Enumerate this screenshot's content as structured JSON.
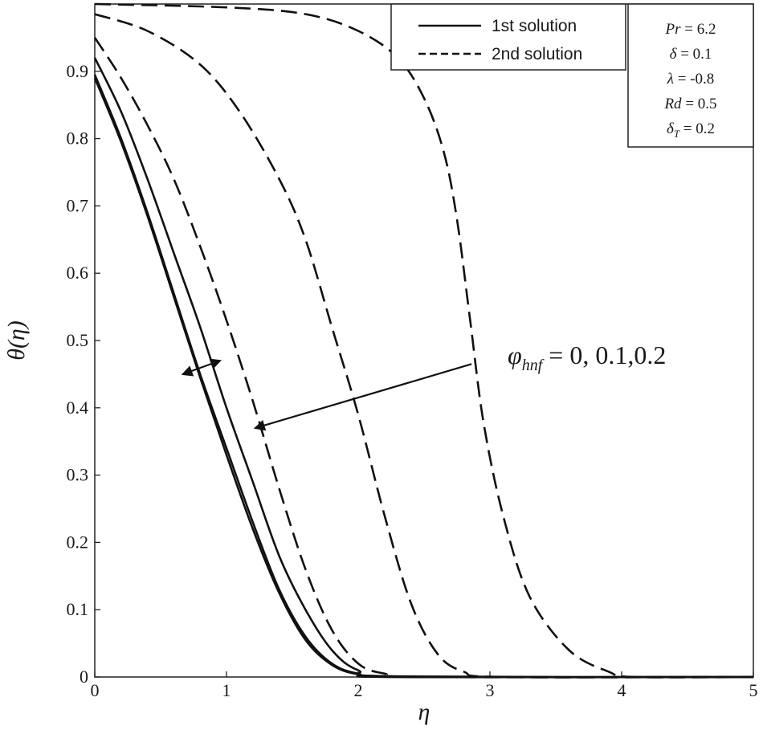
{
  "chart_data": {
    "type": "line",
    "xlabel": "η",
    "ylabel": "θ(η)",
    "xlim": [
      0,
      5
    ],
    "ylim": [
      0,
      1
    ],
    "x_ticks": [
      "0",
      "1",
      "2",
      "3",
      "4",
      "5"
    ],
    "y_ticks": [
      "0",
      "0.1",
      "0.2",
      "0.3",
      "0.4",
      "0.5",
      "0.6",
      "0.7",
      "0.8",
      "0.9"
    ],
    "grid": false,
    "legend": {
      "position": "top-center",
      "entries": [
        {
          "label": "1st solution",
          "style": "solid"
        },
        {
          "label": "2nd solution",
          "style": "dashed"
        }
      ]
    },
    "parameters": [
      {
        "symbol": "Pr",
        "sub": "",
        "value": "= 6.2"
      },
      {
        "symbol": "δ",
        "sub": "",
        "value": "= 0.1"
      },
      {
        "symbol": "λ",
        "sub": "",
        "value": "= -0.8"
      },
      {
        "symbol": "Rd",
        "sub": "",
        "value": "= 0.5"
      },
      {
        "symbol": "δ",
        "sub": "T",
        "value": "= 0.2"
      }
    ],
    "annotation": {
      "symbol": "φ",
      "sub": "hnf",
      "value": " = 0, 0.1,0.2"
    },
    "series": [
      {
        "style": "solid",
        "points": [
          [
            0,
            0.92
          ],
          [
            0.2,
            0.84
          ],
          [
            0.4,
            0.74
          ],
          [
            0.6,
            0.63
          ],
          [
            0.8,
            0.52
          ],
          [
            1.0,
            0.4
          ],
          [
            1.2,
            0.29
          ],
          [
            1.4,
            0.18
          ],
          [
            1.6,
            0.1
          ],
          [
            1.8,
            0.04
          ],
          [
            2.0,
            0.01
          ],
          [
            2.3,
            0.001
          ],
          [
            5.0,
            0
          ]
        ]
      },
      {
        "style": "solid",
        "points": [
          [
            0,
            0.895
          ],
          [
            0.2,
            0.8
          ],
          [
            0.4,
            0.69
          ],
          [
            0.6,
            0.57
          ],
          [
            0.8,
            0.45
          ],
          [
            1.0,
            0.34
          ],
          [
            1.2,
            0.23
          ],
          [
            1.4,
            0.13
          ],
          [
            1.6,
            0.06
          ],
          [
            1.8,
            0.02
          ],
          [
            2.0,
            0.005
          ],
          [
            2.3,
            0
          ],
          [
            5.0,
            0
          ]
        ]
      },
      {
        "style": "solid",
        "points": [
          [
            0,
            0.89
          ],
          [
            0.2,
            0.795
          ],
          [
            0.4,
            0.685
          ],
          [
            0.6,
            0.565
          ],
          [
            0.8,
            0.445
          ],
          [
            1.0,
            0.33
          ],
          [
            1.2,
            0.22
          ],
          [
            1.4,
            0.125
          ],
          [
            1.6,
            0.055
          ],
          [
            1.8,
            0.018
          ],
          [
            2.0,
            0.004
          ],
          [
            2.3,
            0
          ],
          [
            5.0,
            0
          ]
        ]
      },
      {
        "style": "dashed",
        "points": [
          [
            0,
            0.95
          ],
          [
            0.2,
            0.89
          ],
          [
            0.4,
            0.82
          ],
          [
            0.6,
            0.74
          ],
          [
            0.8,
            0.64
          ],
          [
            1.0,
            0.53
          ],
          [
            1.2,
            0.41
          ],
          [
            1.4,
            0.28
          ],
          [
            1.6,
            0.16
          ],
          [
            1.8,
            0.07
          ],
          [
            2.0,
            0.02
          ],
          [
            2.2,
            0.005
          ],
          [
            2.5,
            0
          ],
          [
            5.0,
            0
          ]
        ]
      },
      {
        "style": "dashed",
        "points": [
          [
            0,
            0.985
          ],
          [
            0.4,
            0.96
          ],
          [
            0.8,
            0.91
          ],
          [
            1.1,
            0.84
          ],
          [
            1.4,
            0.74
          ],
          [
            1.6,
            0.65
          ],
          [
            1.8,
            0.52
          ],
          [
            2.0,
            0.39
          ],
          [
            2.2,
            0.24
          ],
          [
            2.4,
            0.11
          ],
          [
            2.6,
            0.035
          ],
          [
            2.8,
            0.008
          ],
          [
            3.1,
            0
          ],
          [
            5.0,
            0
          ]
        ]
      },
      {
        "style": "dashed",
        "points": [
          [
            0,
            1.0
          ],
          [
            1.0,
            0.995
          ],
          [
            1.6,
            0.985
          ],
          [
            2.0,
            0.96
          ],
          [
            2.3,
            0.92
          ],
          [
            2.5,
            0.86
          ],
          [
            2.65,
            0.78
          ],
          [
            2.75,
            0.68
          ],
          [
            2.85,
            0.53
          ],
          [
            2.95,
            0.38
          ],
          [
            3.1,
            0.24
          ],
          [
            3.3,
            0.12
          ],
          [
            3.6,
            0.04
          ],
          [
            3.9,
            0.008
          ],
          [
            4.1,
            0
          ],
          [
            5.0,
            0
          ]
        ]
      }
    ],
    "arrows": [
      {
        "from": [
          0.67,
          0.45
        ],
        "to": [
          0.95,
          0.47
        ],
        "double": true
      },
      {
        "from": [
          2.86,
          0.465
        ],
        "to": [
          1.22,
          0.37
        ],
        "double": false
      }
    ]
  }
}
